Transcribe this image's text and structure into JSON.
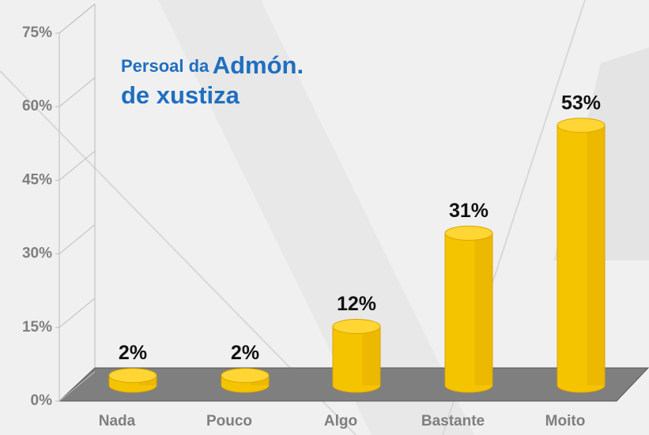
{
  "chart_data": {
    "type": "bar3d",
    "title_parts": [
      "Persoal da",
      "Admón.",
      "de xustiza"
    ],
    "categories": [
      "Nada",
      "Pouco",
      "Algo",
      "Bastante",
      "Moito"
    ],
    "values": [
      2,
      2,
      12,
      31,
      53
    ],
    "value_labels": [
      "2%",
      "2%",
      "12%",
      "31%",
      "53%"
    ],
    "color": "#f5c400",
    "ylim": [
      0,
      75
    ],
    "yticks": [
      {
        "value": 0,
        "label": "0%"
      },
      {
        "value": 15,
        "label": "15%"
      },
      {
        "value": 30,
        "label": "30%"
      },
      {
        "value": 45,
        "label": "45%"
      },
      {
        "value": 60,
        "label": "60%"
      },
      {
        "value": 75,
        "label": "75%"
      }
    ]
  }
}
